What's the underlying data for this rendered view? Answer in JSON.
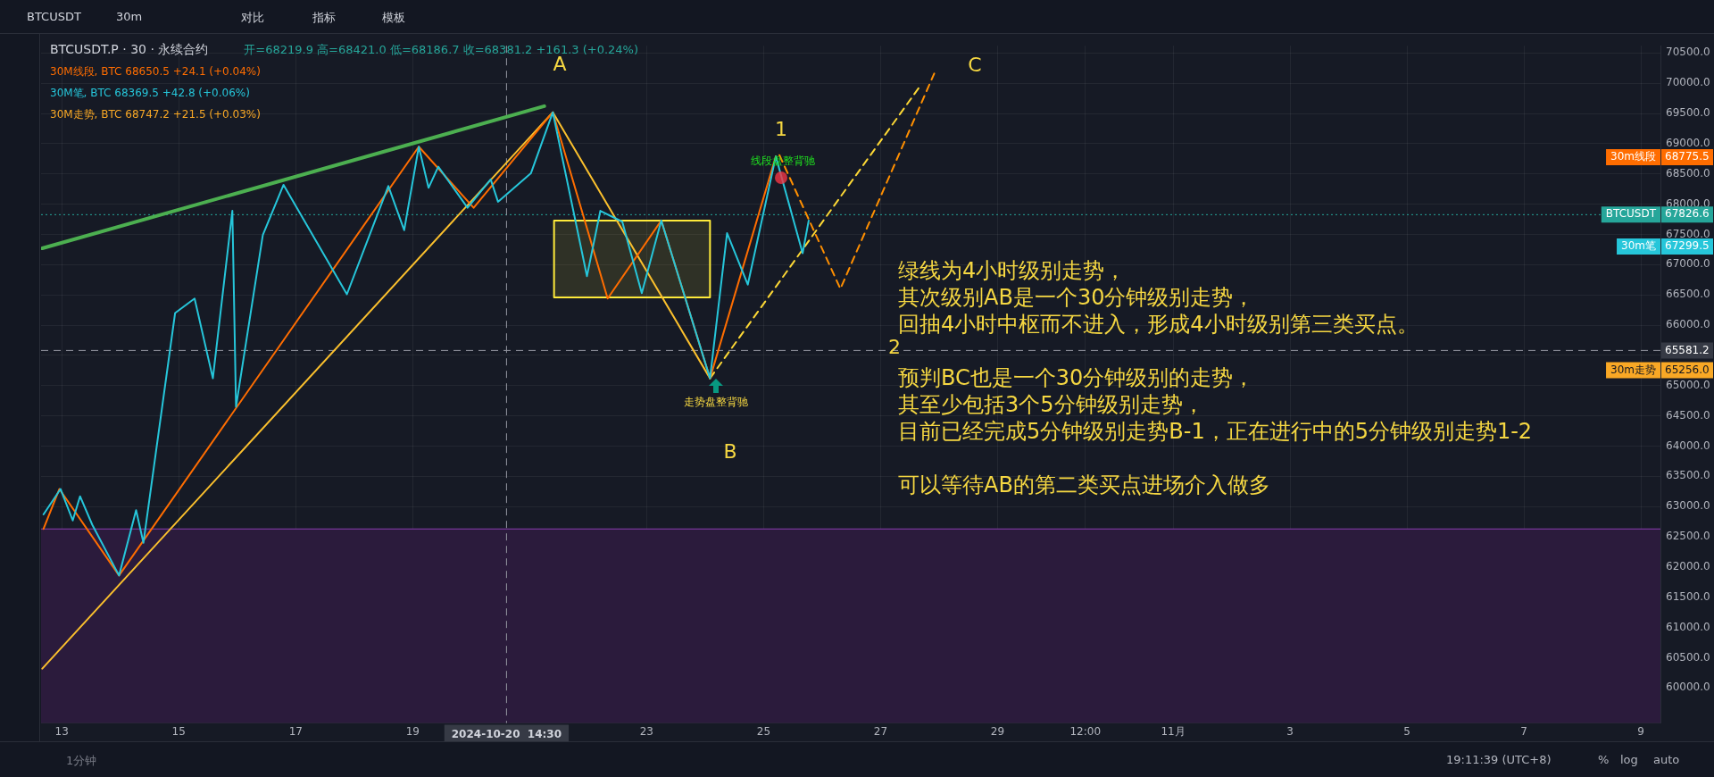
{
  "chart_data": {
    "type": "line",
    "title": "BTCUSDT.P · 30 · 永续合约",
    "subtitle": "开=68219.9 高=68421.0 低=68186.7 收=68381.2 +161.3 (+0.24%)",
    "xlim": [
      "2024-10-12T15:30",
      "2024-11-09T08:00"
    ],
    "xticks": [
      {
        "value": "2024-10-13",
        "label": "13"
      },
      {
        "value": "2024-10-15",
        "label": "15"
      },
      {
        "value": "2024-10-17",
        "label": "17"
      },
      {
        "value": "2024-10-19",
        "label": "19"
      },
      {
        "value": "2024-10-23",
        "label": "23"
      },
      {
        "value": "2024-10-25",
        "label": "25"
      },
      {
        "value": "2024-10-27",
        "label": "27"
      },
      {
        "value": "2024-10-29",
        "label": "29"
      },
      {
        "value": "2024-10-30T12:00",
        "label": "12:00"
      },
      {
        "value": "2024-11-01",
        "label": "11月"
      },
      {
        "value": "2024-11-03",
        "label": "3"
      },
      {
        "value": "2024-11-05",
        "label": "5"
      },
      {
        "value": "2024-11-07",
        "label": "7"
      },
      {
        "value": "2024-11-09",
        "label": "9"
      }
    ],
    "ylim": [
      59420,
      70620
    ],
    "yticks": [
      {
        "value": 60000,
        "label": "60000.0"
      },
      {
        "value": 60500,
        "label": "60500.0"
      },
      {
        "value": 61000,
        "label": "61000.0"
      },
      {
        "value": 61500,
        "label": "61500.0"
      },
      {
        "value": 62000,
        "label": "62000.0"
      },
      {
        "value": 62500,
        "label": "62500.0"
      },
      {
        "value": 63000,
        "label": "63000.0"
      },
      {
        "value": 63500,
        "label": "63500.0"
      },
      {
        "value": 64000,
        "label": "64000.0"
      },
      {
        "value": 64500,
        "label": "64500.0"
      },
      {
        "value": 65000,
        "label": "65000.0"
      },
      {
        "value": 65500,
        "label": null
      },
      {
        "value": 66000,
        "label": "66000.0"
      },
      {
        "value": 66500,
        "label": "66500.0"
      },
      {
        "value": 67000,
        "label": "67000.0"
      },
      {
        "value": 67500,
        "label": "67500.0"
      },
      {
        "value": 68000,
        "label": "68000.0"
      },
      {
        "value": 68500,
        "label": "68500.0"
      },
      {
        "value": 69000,
        "label": "69000.0"
      },
      {
        "value": 69500,
        "label": "69500.0"
      },
      {
        "value": 70000,
        "label": "70000.0"
      },
      {
        "value": 70500,
        "label": "70500.0"
      }
    ],
    "grid": true,
    "legend": false,
    "marker": "none",
    "series": [
      {
        "color": "#26c6da",
        "x": [
          "2024-10-12T16:30",
          "2024-10-12T23:30",
          "2024-10-13T04:30",
          "2024-10-13T07:30",
          "2024-10-13T12:30",
          "2024-10-13T23:30",
          "2024-10-14T06:30",
          "2024-10-14T09:30",
          "2024-10-14T22:30",
          "2024-10-15T06:30",
          "2024-10-15T14:00",
          "2024-10-15T22:00",
          "2024-10-15T23:30",
          "2024-10-16T10:30",
          "2024-10-16T19:00",
          "2024-10-17T21:00",
          "2024-10-18T14:00",
          "2024-10-18T20:30",
          "2024-10-19T02:30",
          "2024-10-19T06:30",
          "2024-10-19T10:30",
          "2024-10-19T22:30",
          "2024-10-20T08:00",
          "2024-10-20T11:00",
          "2024-10-21T00:30",
          "2024-10-21T09:30",
          "2024-10-21T23:30",
          "2024-10-22T05:00",
          "2024-10-22T14:00",
          "2024-10-22T22:00",
          "2024-10-23T06:00",
          "2024-10-24T02:00",
          "2024-10-24T09:00",
          "2024-10-24T17:30",
          "2024-10-25T05:00",
          "2024-10-25T16:00",
          "2024-10-25T18:30"
        ],
        "values": [
          62870,
          63290,
          62770,
          63170,
          62700,
          61860,
          62940,
          62400,
          66200,
          66440,
          65120,
          67890,
          64650,
          67490,
          68320,
          66510,
          68300,
          67570,
          68950,
          68270,
          68620,
          67940,
          68410,
          68040,
          68510,
          69520,
          66810,
          67890,
          67710,
          66530,
          67730,
          65120,
          67520,
          66670,
          68790,
          67190,
          67730
        ]
      },
      {
        "color": "#ff6d00",
        "x": [
          "2024-10-12T16:30",
          "2024-10-12T23:00",
          "2024-10-13T23:30",
          "2024-10-19T02:30",
          "2024-10-20T01:00",
          "2024-10-21T09:30",
          "2024-10-22T08:00",
          "2024-10-23T06:00",
          "2024-10-24T02:00",
          "2024-10-25T05:00"
        ],
        "values": [
          62630,
          63290,
          61860,
          68950,
          67940,
          69520,
          66440,
          67730,
          65120,
          68790
        ]
      },
      {
        "color": "#ff8f00",
        "line_style": "dashed",
        "x": [
          "2024-10-25T06:30",
          "2024-10-26T07:30",
          "2024-10-27T22:00"
        ],
        "values": [
          68810,
          66600,
          70160
        ]
      },
      {
        "color": "#fbc02d",
        "x": [
          "2024-10-12T16:00",
          "2024-10-21T09:30",
          "2024-10-24T02:00"
        ],
        "values": [
          60320,
          69520,
          65120
        ]
      },
      {
        "color": "#fdd835",
        "line_style": "dashed",
        "x": [
          "2024-10-24T02:00",
          "2024-10-27T16:30"
        ],
        "values": [
          65120,
          69970
        ]
      },
      {
        "color": "#4caf50",
        "x": [
          "2024-10-12T16:00",
          "2024-10-21T06:00"
        ],
        "values": [
          67270,
          69620
        ]
      },
      {
        "type": "area",
        "color": "#ffeb3b",
        "x": [
          "2024-10-21T10:00",
          "2024-10-21T10:00",
          "2024-10-24T02:00",
          "2024-10-24T02:00",
          "2024-10-21T10:00"
        ],
        "values": [
          66460,
          67730,
          67730,
          66460,
          66460
        ]
      }
    ],
    "bands": [
      {
        "axis": "y",
        "from": 59420,
        "to": 62630,
        "color": "#2b1b3c"
      }
    ],
    "ref_lines": [
      {
        "axis": "y",
        "value": 67826.6,
        "color": "#26a69a",
        "line_style": "dotted"
      },
      {
        "axis": "y",
        "value": 65581.2,
        "color": "#9598a1",
        "line_style": "dashed"
      },
      {
        "axis": "y",
        "value": 62630,
        "color": "#8e3fb3",
        "line_style": "solid"
      },
      {
        "axis": "x",
        "value": "2024-10-20T14:30",
        "label": "2024-10-20  14:30",
        "color": "#9598a1",
        "line_style": "dashed"
      }
    ],
    "annotations": [
      "30M线段, BTC 68650.5 +24.1 (+0.04%)",
      "30M笔, BTC 68369.5 +42.8 (+0.06%)",
      "30M走势, BTC 68747.2 +21.5 (+0.03%)",
      "BTCUSDT",
      "30m",
      "对比",
      "指标",
      "模板",
      "1分钟",
      "19:11:39 (UTC+8)",
      "%",
      "log",
      "auto",
      "绿线为4小时级别走势，",
      "其次级别AB是一个30分钟级别走势，",
      "回抽4小时中枢而不进入，形成4小时级别第三类买点。",
      "预判BC也是一个30分钟级别的走势，",
      "其至少包括3个5分钟级别走势，",
      "目前已经完成5分钟级别走势B-1，正在进行中的5分钟级别走势1-2",
      "可以等待AB的第二类买点进场介入做多",
      "A",
      "B",
      "C",
      "1",
      "2",
      "线段盘整背驰",
      "走势盘整背驰",
      "30m线段",
      "68775.5",
      "BTCUSDT",
      "67826.6",
      "30m笔",
      "67299.5",
      "65581.2",
      "30m走势",
      "65256.0"
    ]
  }
}
